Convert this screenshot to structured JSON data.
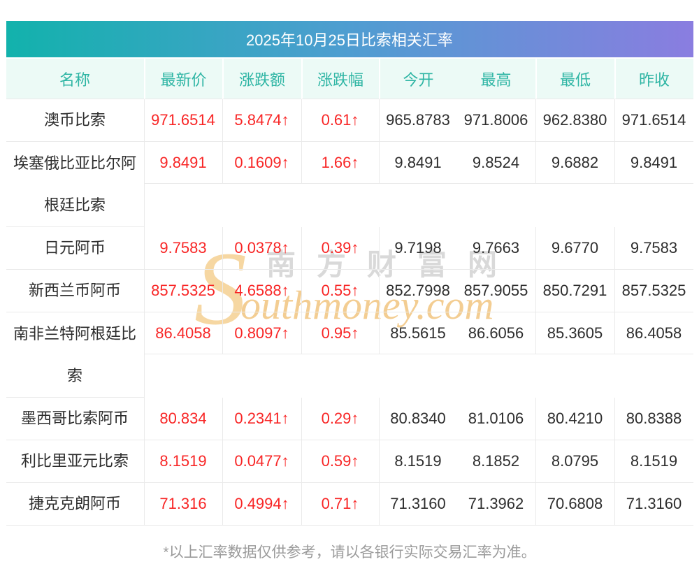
{
  "header": {
    "title": "2025年10月25日比索相关汇率"
  },
  "watermark": {
    "s": "S",
    "cn": "南方财富网",
    "en": "outhmoney.com"
  },
  "footer": {
    "note": "*以上汇率数据仅供参考，请以各银行实际交易汇率为准。"
  },
  "colors": {
    "gradient_left": "#12b2ac",
    "gradient_mid": "#4f9dd1",
    "gradient_right": "#8a7de0",
    "header_bg": "#ecfaf6",
    "header_text": "#2eb5a4",
    "up_red": "#f82626",
    "row_line": "#eaeaea",
    "watermark_gray": "#d9d9d9",
    "watermark_orange": "#f3cd92"
  },
  "table": {
    "up_arrow": "↑",
    "columns": [
      "名称",
      "最新价",
      "涨跌额",
      "涨跌幅",
      "今开",
      "最高",
      "最低",
      "昨收"
    ],
    "rows": [
      {
        "name": "澳币比索",
        "latest": "971.6514",
        "change": "5.8474",
        "pct": "0.61",
        "open": "965.8783",
        "high": "971.8006",
        "low": "962.8380",
        "prev": "971.6514",
        "wrap": false
      },
      {
        "name": "埃塞俄比亚比尔阿根廷比索",
        "latest": "9.8491",
        "change": "0.1609",
        "pct": "1.66",
        "open": "9.8491",
        "high": "9.8524",
        "low": "9.6882",
        "prev": "9.8491",
        "wrap": true
      },
      {
        "name": "日元阿币",
        "latest": "9.7583",
        "change": "0.0378",
        "pct": "0.39",
        "open": "9.7198",
        "high": "9.7663",
        "low": "9.6770",
        "prev": "9.7583",
        "wrap": false
      },
      {
        "name": "新西兰币阿币",
        "latest": "857.5325",
        "change": "4.6588",
        "pct": "0.55",
        "open": "852.7998",
        "high": "857.9055",
        "low": "850.7291",
        "prev": "857.5325",
        "wrap": false
      },
      {
        "name": "南非兰特阿根廷比索",
        "latest": "86.4058",
        "change": "0.8097",
        "pct": "0.95",
        "open": "85.5615",
        "high": "86.6056",
        "low": "85.3605",
        "prev": "86.4058",
        "wrap": true
      },
      {
        "name": "墨西哥比索阿币",
        "latest": "80.834",
        "change": "0.2341",
        "pct": "0.29",
        "open": "80.8340",
        "high": "81.0106",
        "low": "80.4210",
        "prev": "80.8388",
        "wrap": false
      },
      {
        "name": "利比里亚元比索",
        "latest": "8.1519",
        "change": "0.0477",
        "pct": "0.59",
        "open": "8.1519",
        "high": "8.1852",
        "low": "8.0795",
        "prev": "8.1519",
        "wrap": false
      },
      {
        "name": "捷克克朗阿币",
        "latest": "71.316",
        "change": "0.4994",
        "pct": "0.71",
        "open": "71.3160",
        "high": "71.3962",
        "low": "70.6808",
        "prev": "71.3160",
        "wrap": false
      }
    ]
  }
}
